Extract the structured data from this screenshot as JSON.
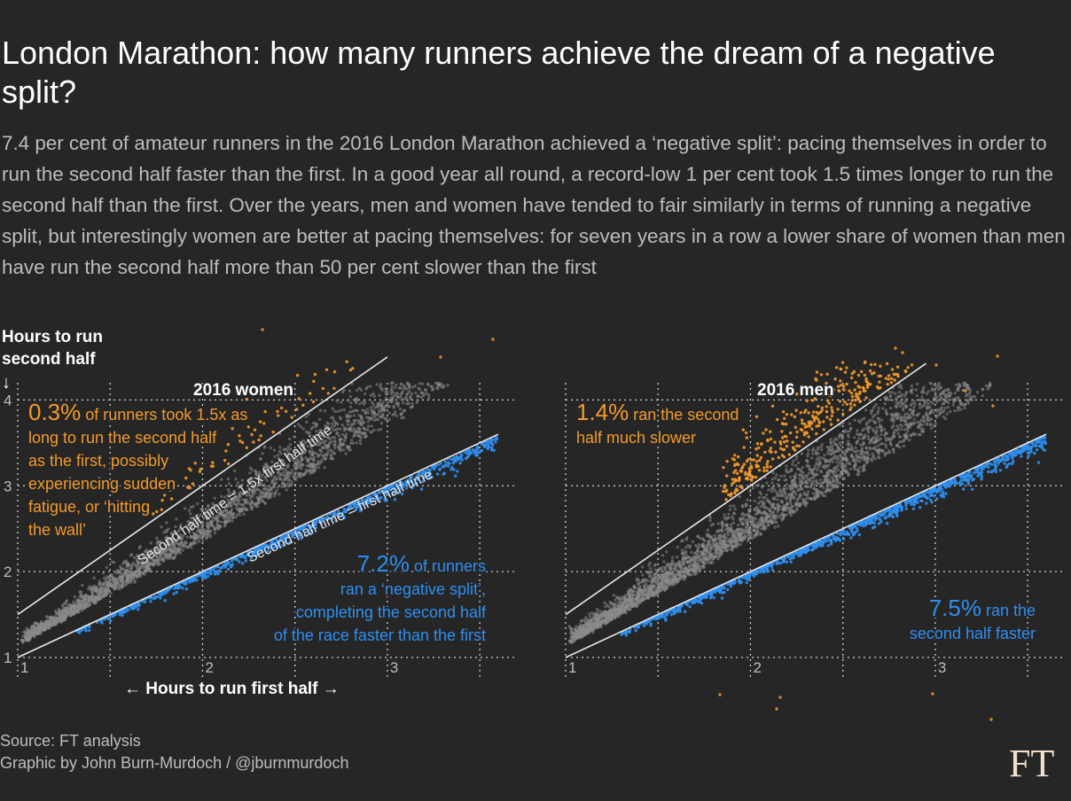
{
  "title": "London Marathon: how many runners achieve the dream of a negative split?",
  "subtitle": "7.4 per cent of amateur runners in the 2016 London Marathon achieved a ‘negative split’: pacing themselves in order to run the second half faster than the first. In a good year all round, a record-low 1 per cent took 1.5 times longer to run the second half than the first. Over the years, men and women have tended to fair similarly in terms of running a negative split, but interestingly women are better at pacing themselves: for seven years in a row a lower share of women than men have run the second half more than 50 per cent slower than the first",
  "footer": {
    "source": "Source: FT analysis",
    "credit": "Graphic by John Burn-Murdoch / @jburnmurdoch",
    "logo": "FT"
  },
  "colors": {
    "background": "#262626",
    "slower": "#f39a2a",
    "faster": "#2f8ff0",
    "normal": "#8a8a8a"
  },
  "chart_data": [
    {
      "type": "scatter",
      "title": "2016 women",
      "xlabel": "← Hours to run first half →",
      "ylabel_line1": "Hours to run",
      "ylabel_line2": "second half",
      "ylabel_arrow": "↓",
      "xlim": [
        1,
        3.6
      ],
      "ylim": [
        1,
        4.2
      ],
      "xticks": [
        1,
        1.5,
        2,
        2.5,
        3,
        3.5
      ],
      "xtick_labels": [
        "1",
        "",
        "2",
        "",
        "3",
        ""
      ],
      "yticks": [
        1,
        2,
        3,
        4
      ],
      "ytick_labels": [
        "1",
        "2",
        "3",
        "4"
      ],
      "reference_lines": [
        {
          "label": "Second half time = first half time",
          "slope": 1.0
        },
        {
          "label": "Second half time = 1.5x first half time",
          "slope": 1.5
        }
      ],
      "series": [
        {
          "name": "Second half slower by more than 1.5x",
          "share_pct": 0.3
        },
        {
          "name": "Negative split (second half faster)",
          "share_pct": 7.2
        }
      ],
      "annotations": [
        {
          "pct": "0.3%",
          "lines": [
            " of runners took 1.5x as",
            "long to run the second half",
            "as the first, possibly",
            "experiencing sudden",
            "fatigue, or ‘hitting",
            "the wall’"
          ]
        },
        {
          "pct": "7.2%",
          "lines": [
            " of runners",
            "ran a ‘negative split’,",
            "completing the second half",
            "of the race faster than the first"
          ]
        }
      ]
    },
    {
      "type": "scatter",
      "title": "2016 men",
      "xlim": [
        1,
        3.6
      ],
      "ylim": [
        1,
        4.2
      ],
      "xticks": [
        1,
        1.5,
        2,
        2.5,
        3,
        3.5
      ],
      "xtick_labels": [
        "1",
        "",
        "2",
        "",
        "3",
        ""
      ],
      "yticks": [
        1,
        2,
        3,
        4
      ],
      "ytick_labels": [
        "",
        "",
        "",
        ""
      ],
      "reference_lines": [
        {
          "slope": 1.0
        },
        {
          "slope": 1.5
        }
      ],
      "series": [
        {
          "name": "Second half much slower",
          "share_pct": 1.4
        },
        {
          "name": "Second half faster",
          "share_pct": 7.5
        }
      ],
      "annotations": [
        {
          "pct": "1.4%",
          "lines": [
            " ran the second",
            "half much slower"
          ]
        },
        {
          "pct": "7.5%",
          "lines": [
            " ran the",
            "second half faster"
          ]
        }
      ]
    }
  ]
}
